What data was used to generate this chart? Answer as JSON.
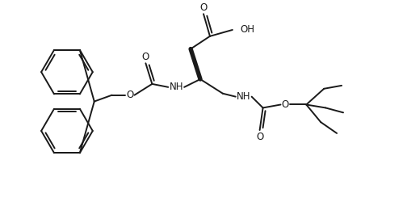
{
  "bg_color": "#ffffff",
  "line_color": "#1a1a1a",
  "lw": 1.4,
  "figsize": [
    5.04,
    2.5
  ],
  "dpi": 100,
  "xlim": [
    0,
    504
  ],
  "ylim": [
    0,
    250
  ]
}
